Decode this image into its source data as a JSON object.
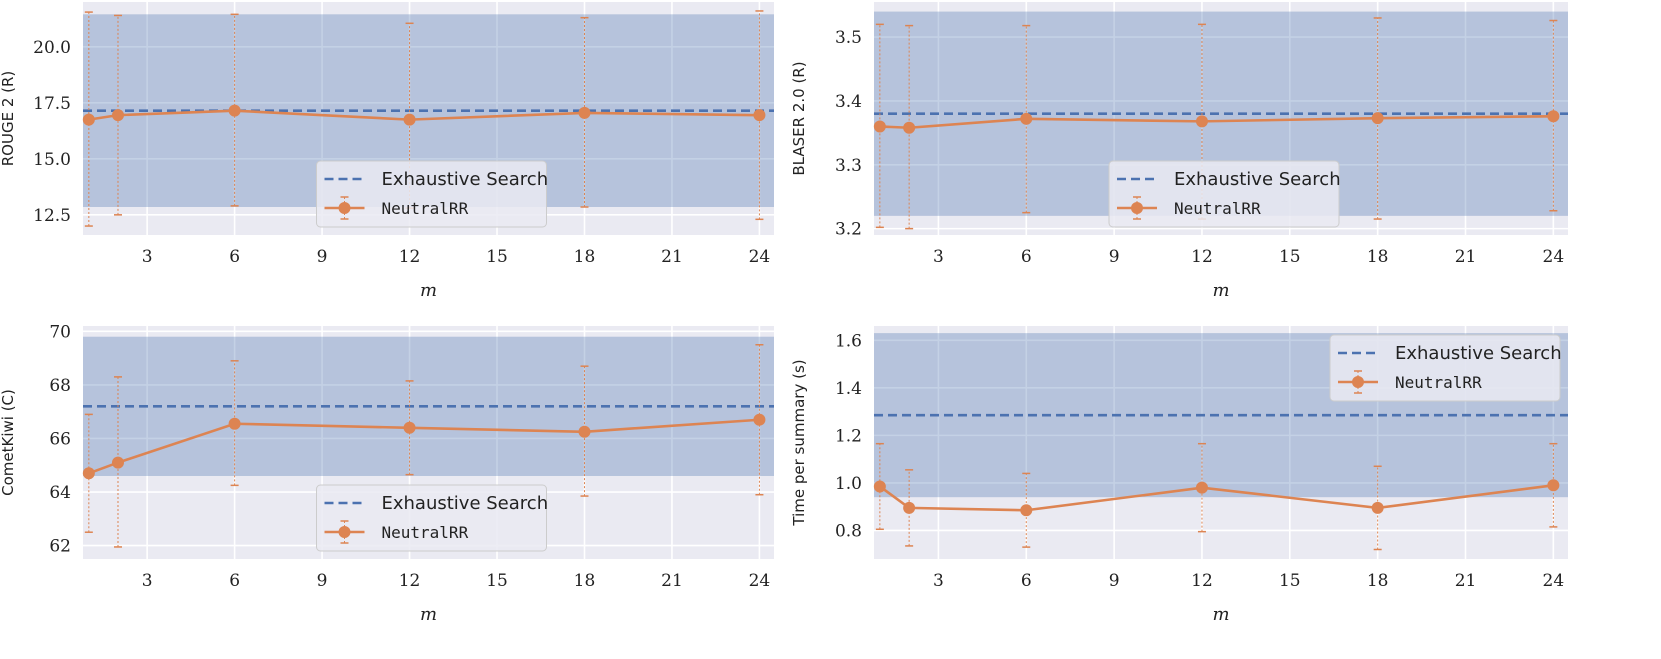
{
  "colors": {
    "axes_bg": "#eaeaf2",
    "grid": "#ffffff",
    "band": "#4c72b0",
    "exhaustive_line": "#4c72b0",
    "method_line": "#dd8452"
  },
  "chart_data": [
    {
      "type": "line",
      "panel": "top-left",
      "xlabel": "m",
      "ylabel": "ROUGE 2 (R)",
      "xticks": [
        3,
        6,
        9,
        12,
        15,
        18,
        21,
        24
      ],
      "xlim": [
        0.8,
        24.5
      ],
      "yticks": [
        12.5,
        15.0,
        17.5,
        20.0
      ],
      "ytick_labels": [
        "12.5",
        "15.0",
        "17.5",
        "20.0"
      ],
      "ylim": [
        11.6,
        22.0
      ],
      "exhaustive": {
        "name": "Exhaustive Search",
        "value": 17.15,
        "band": [
          12.85,
          21.45
        ]
      },
      "series": {
        "name": "NeutralRR",
        "x": [
          1,
          2,
          6,
          12,
          18,
          24
        ],
        "y": [
          16.75,
          16.95,
          17.15,
          16.75,
          17.05,
          16.95
        ],
        "err_low": [
          12.0,
          12.5,
          12.9,
          12.8,
          12.85,
          12.3
        ],
        "err_high": [
          21.55,
          21.4,
          21.45,
          21.05,
          21.3,
          21.6
        ]
      },
      "legend_loc": "lower-center"
    },
    {
      "type": "line",
      "panel": "top-right",
      "xlabel": "m",
      "ylabel": "BLASER 2.0 (R)",
      "xticks": [
        3,
        6,
        9,
        12,
        15,
        18,
        21,
        24
      ],
      "xlim": [
        0.8,
        24.5
      ],
      "yticks": [
        3.2,
        3.3,
        3.4,
        3.5
      ],
      "ytick_labels": [
        "3.2",
        "3.3",
        "3.4",
        "3.5"
      ],
      "ylim": [
        3.19,
        3.555
      ],
      "exhaustive": {
        "name": "Exhaustive Search",
        "value": 3.38,
        "band": [
          3.22,
          3.54
        ]
      },
      "series": {
        "name": "NeutralRR",
        "x": [
          1,
          2,
          6,
          12,
          18,
          24
        ],
        "y": [
          3.36,
          3.358,
          3.372,
          3.368,
          3.373,
          3.376
        ],
        "err_low": [
          3.202,
          3.2,
          3.225,
          3.215,
          3.215,
          3.228
        ],
        "err_high": [
          3.52,
          3.518,
          3.518,
          3.52,
          3.53,
          3.526
        ]
      },
      "legend_loc": "lower-center"
    },
    {
      "type": "line",
      "panel": "bottom-left",
      "xlabel": "m",
      "ylabel": "CometKiwi (C)",
      "xticks": [
        3,
        6,
        9,
        12,
        15,
        18,
        21,
        24
      ],
      "xlim": [
        0.8,
        24.5
      ],
      "yticks": [
        62,
        64,
        66,
        68,
        70
      ],
      "ytick_labels": [
        "62",
        "64",
        "66",
        "68",
        "70"
      ],
      "ylim": [
        61.5,
        70.2
      ],
      "exhaustive": {
        "name": "Exhaustive Search",
        "value": 67.2,
        "band": [
          64.6,
          69.8
        ]
      },
      "series": {
        "name": "NeutralRR",
        "x": [
          1,
          2,
          6,
          12,
          18,
          24
        ],
        "y": [
          64.7,
          65.1,
          66.55,
          66.4,
          66.25,
          66.7
        ],
        "err_low": [
          62.5,
          61.95,
          64.25,
          64.65,
          63.85,
          63.9
        ],
        "err_high": [
          66.9,
          68.3,
          68.9,
          68.15,
          68.7,
          69.5
        ]
      },
      "legend_loc": "lower-center"
    },
    {
      "type": "line",
      "panel": "bottom-right",
      "xlabel": "m",
      "ylabel": "Time per summary (s)",
      "xticks": [
        3,
        6,
        9,
        12,
        15,
        18,
        21,
        24
      ],
      "xlim": [
        0.8,
        24.5
      ],
      "yticks": [
        0.8,
        1.0,
        1.2,
        1.4,
        1.6
      ],
      "ytick_labels": [
        "0.8",
        "1.0",
        "1.2",
        "1.4",
        "1.6"
      ],
      "ylim": [
        0.68,
        1.66
      ],
      "exhaustive": {
        "name": "Exhaustive Search",
        "value": 1.285,
        "band": [
          0.94,
          1.63
        ]
      },
      "series": {
        "name": "NeutralRR",
        "x": [
          1,
          2,
          6,
          12,
          18,
          24
        ],
        "y": [
          0.985,
          0.895,
          0.885,
          0.98,
          0.895,
          0.99
        ],
        "err_low": [
          0.805,
          0.735,
          0.73,
          0.795,
          0.72,
          0.815
        ],
        "err_high": [
          1.165,
          1.055,
          1.04,
          1.165,
          1.07,
          1.165
        ]
      },
      "legend_loc": "upper-right"
    }
  ]
}
